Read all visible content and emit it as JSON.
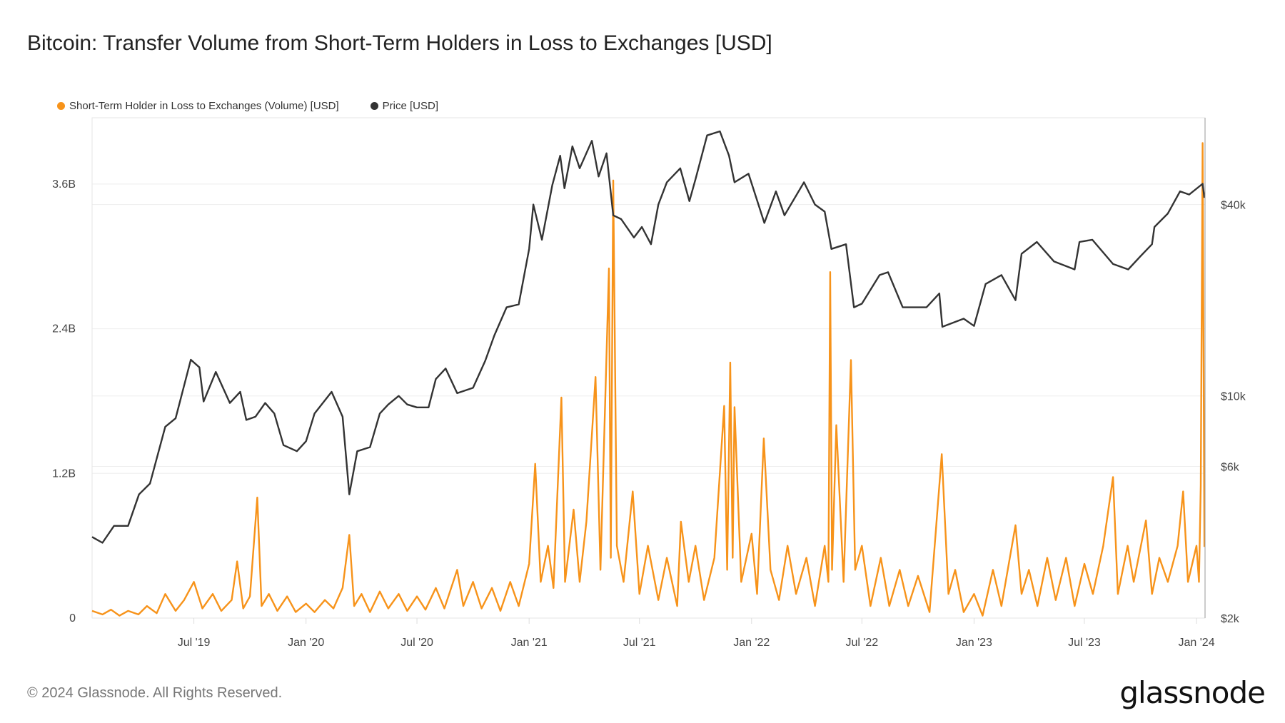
{
  "title": "Bitcoin: Transfer Volume from Short-Term Holders in Loss to Exchanges [USD]",
  "footer": "© 2024 Glassnode. All Rights Reserved.",
  "logo": "glassnode",
  "colors": {
    "volume": "#f7931a",
    "price": "#333333",
    "grid": "#eeeeee"
  },
  "chart_data": {
    "type": "line",
    "title": "Bitcoin: Transfer Volume from Short-Term Holders in Loss to Exchanges [USD]",
    "legend_placement": "top-left",
    "grid": true,
    "x_range": [
      "2019-01-15",
      "2024-01-15"
    ],
    "x_ticks": [
      {
        "date": "2019-07-01",
        "label": "Jul '19"
      },
      {
        "date": "2020-01-01",
        "label": "Jan '20"
      },
      {
        "date": "2020-07-01",
        "label": "Jul '20"
      },
      {
        "date": "2021-01-01",
        "label": "Jan '21"
      },
      {
        "date": "2021-07-01",
        "label": "Jul '21"
      },
      {
        "date": "2022-01-01",
        "label": "Jan '22"
      },
      {
        "date": "2022-07-01",
        "label": "Jul '22"
      },
      {
        "date": "2023-01-01",
        "label": "Jan '23"
      },
      {
        "date": "2023-07-01",
        "label": "Jul '23"
      },
      {
        "date": "2024-01-01",
        "label": "Jan '24"
      }
    ],
    "y_left": {
      "scale": "linear",
      "range": [
        0,
        4150000000
      ],
      "ticks": [
        {
          "value": 0,
          "label": "0"
        },
        {
          "value": 1200000000,
          "label": "1.2B"
        },
        {
          "value": 2400000000,
          "label": "2.4B"
        },
        {
          "value": 3600000000,
          "label": "3.6B"
        }
      ]
    },
    "y_right": {
      "scale": "log",
      "range": [
        2000,
        75000
      ],
      "ticks": [
        {
          "value": 2000,
          "label": "$2k"
        },
        {
          "value": 6000,
          "label": "$6k"
        },
        {
          "value": 10000,
          "label": "$10k"
        },
        {
          "value": 40000,
          "label": "$40k"
        }
      ]
    },
    "series": [
      {
        "name": "Short-Term Holder in Loss to Exchanges (Volume) [USD]",
        "axis": "left",
        "color": "#f7931a",
        "points": [
          [
            "2019-01-15",
            0.06
          ],
          [
            "2019-02-01",
            0.03
          ],
          [
            "2019-02-15",
            0.07
          ],
          [
            "2019-03-01",
            0.02
          ],
          [
            "2019-03-15",
            0.06
          ],
          [
            "2019-04-01",
            0.03
          ],
          [
            "2019-04-15",
            0.1
          ],
          [
            "2019-05-01",
            0.04
          ],
          [
            "2019-05-15",
            0.2
          ],
          [
            "2019-06-01",
            0.06
          ],
          [
            "2019-06-15",
            0.15
          ],
          [
            "2019-07-01",
            0.3
          ],
          [
            "2019-07-15",
            0.08
          ],
          [
            "2019-08-01",
            0.2
          ],
          [
            "2019-08-15",
            0.06
          ],
          [
            "2019-09-01",
            0.15
          ],
          [
            "2019-09-10",
            0.47
          ],
          [
            "2019-09-20",
            0.08
          ],
          [
            "2019-10-01",
            0.18
          ],
          [
            "2019-10-13",
            1.0
          ],
          [
            "2019-10-20",
            0.1
          ],
          [
            "2019-11-01",
            0.2
          ],
          [
            "2019-11-15",
            0.06
          ],
          [
            "2019-12-01",
            0.18
          ],
          [
            "2019-12-15",
            0.05
          ],
          [
            "2020-01-01",
            0.12
          ],
          [
            "2020-01-15",
            0.05
          ],
          [
            "2020-02-01",
            0.15
          ],
          [
            "2020-02-15",
            0.08
          ],
          [
            "2020-03-01",
            0.25
          ],
          [
            "2020-03-12",
            0.69
          ],
          [
            "2020-03-20",
            0.1
          ],
          [
            "2020-04-01",
            0.2
          ],
          [
            "2020-04-15",
            0.05
          ],
          [
            "2020-05-01",
            0.22
          ],
          [
            "2020-05-15",
            0.08
          ],
          [
            "2020-06-01",
            0.2
          ],
          [
            "2020-06-15",
            0.06
          ],
          [
            "2020-07-01",
            0.18
          ],
          [
            "2020-07-15",
            0.07
          ],
          [
            "2020-08-01",
            0.25
          ],
          [
            "2020-08-15",
            0.08
          ],
          [
            "2020-09-05",
            0.4
          ],
          [
            "2020-09-15",
            0.1
          ],
          [
            "2020-10-01",
            0.3
          ],
          [
            "2020-10-15",
            0.08
          ],
          [
            "2020-11-01",
            0.25
          ],
          [
            "2020-11-15",
            0.06
          ],
          [
            "2020-12-01",
            0.3
          ],
          [
            "2020-12-15",
            0.1
          ],
          [
            "2021-01-01",
            0.45
          ],
          [
            "2021-01-11",
            1.28
          ],
          [
            "2021-01-20",
            0.3
          ],
          [
            "2021-02-01",
            0.6
          ],
          [
            "2021-02-10",
            0.25
          ],
          [
            "2021-02-23",
            1.83
          ],
          [
            "2021-03-01",
            0.3
          ],
          [
            "2021-03-15",
            0.9
          ],
          [
            "2021-03-25",
            0.3
          ],
          [
            "2021-04-05",
            0.8
          ],
          [
            "2021-04-20",
            2.0
          ],
          [
            "2021-04-28",
            0.4
          ],
          [
            "2021-05-12",
            2.9
          ],
          [
            "2021-05-15",
            0.5
          ],
          [
            "2021-05-19",
            3.63
          ],
          [
            "2021-05-25",
            0.6
          ],
          [
            "2021-06-05",
            0.3
          ],
          [
            "2021-06-20",
            1.05
          ],
          [
            "2021-07-01",
            0.2
          ],
          [
            "2021-07-15",
            0.6
          ],
          [
            "2021-08-01",
            0.15
          ],
          [
            "2021-08-15",
            0.5
          ],
          [
            "2021-09-01",
            0.1
          ],
          [
            "2021-09-07",
            0.8
          ],
          [
            "2021-09-20",
            0.3
          ],
          [
            "2021-10-01",
            0.6
          ],
          [
            "2021-10-15",
            0.15
          ],
          [
            "2021-11-01",
            0.5
          ],
          [
            "2021-11-17",
            1.76
          ],
          [
            "2021-11-22",
            0.4
          ],
          [
            "2021-11-27",
            2.12
          ],
          [
            "2021-12-01",
            0.5
          ],
          [
            "2021-12-04",
            1.75
          ],
          [
            "2021-12-15",
            0.3
          ],
          [
            "2022-01-01",
            0.7
          ],
          [
            "2022-01-10",
            0.2
          ],
          [
            "2022-01-21",
            1.49
          ],
          [
            "2022-02-01",
            0.4
          ],
          [
            "2022-02-15",
            0.15
          ],
          [
            "2022-03-01",
            0.6
          ],
          [
            "2022-03-15",
            0.2
          ],
          [
            "2022-04-01",
            0.5
          ],
          [
            "2022-04-15",
            0.1
          ],
          [
            "2022-05-01",
            0.6
          ],
          [
            "2022-05-07",
            0.3
          ],
          [
            "2022-05-10",
            2.87
          ],
          [
            "2022-05-13",
            0.4
          ],
          [
            "2022-05-20",
            1.6
          ],
          [
            "2022-06-01",
            0.3
          ],
          [
            "2022-06-13",
            2.14
          ],
          [
            "2022-06-20",
            0.4
          ],
          [
            "2022-07-01",
            0.6
          ],
          [
            "2022-07-15",
            0.1
          ],
          [
            "2022-08-01",
            0.5
          ],
          [
            "2022-08-15",
            0.1
          ],
          [
            "2022-09-01",
            0.4
          ],
          [
            "2022-09-15",
            0.1
          ],
          [
            "2022-10-01",
            0.35
          ],
          [
            "2022-10-20",
            0.05
          ],
          [
            "2022-11-09",
            1.36
          ],
          [
            "2022-11-20",
            0.2
          ],
          [
            "2022-12-01",
            0.4
          ],
          [
            "2022-12-15",
            0.05
          ],
          [
            "2023-01-01",
            0.2
          ],
          [
            "2023-01-15",
            0.02
          ],
          [
            "2023-02-01",
            0.4
          ],
          [
            "2023-02-15",
            0.1
          ],
          [
            "2023-03-10",
            0.77
          ],
          [
            "2023-03-20",
            0.2
          ],
          [
            "2023-04-01",
            0.4
          ],
          [
            "2023-04-15",
            0.1
          ],
          [
            "2023-05-01",
            0.5
          ],
          [
            "2023-05-15",
            0.15
          ],
          [
            "2023-06-01",
            0.5
          ],
          [
            "2023-06-15",
            0.1
          ],
          [
            "2023-07-01",
            0.45
          ],
          [
            "2023-07-15",
            0.2
          ],
          [
            "2023-08-01",
            0.6
          ],
          [
            "2023-08-17",
            1.17
          ],
          [
            "2023-08-25",
            0.2
          ],
          [
            "2023-09-10",
            0.6
          ],
          [
            "2023-09-20",
            0.3
          ],
          [
            "2023-10-10",
            0.81
          ],
          [
            "2023-10-20",
            0.2
          ],
          [
            "2023-11-01",
            0.5
          ],
          [
            "2023-11-15",
            0.3
          ],
          [
            "2023-12-01",
            0.6
          ],
          [
            "2023-12-10",
            1.05
          ],
          [
            "2023-12-18",
            0.3
          ],
          [
            "2024-01-01",
            0.6
          ],
          [
            "2024-01-05",
            0.3
          ],
          [
            "2024-01-08",
            1.1
          ],
          [
            "2024-01-11",
            3.94
          ],
          [
            "2024-01-14",
            0.59
          ]
        ]
      },
      {
        "name": "Price [USD]",
        "axis": "right",
        "color": "#333333",
        "points": [
          [
            "2019-01-15",
            3600
          ],
          [
            "2019-02-01",
            3450
          ],
          [
            "2019-02-20",
            3900
          ],
          [
            "2019-03-15",
            3900
          ],
          [
            "2019-04-02",
            4900
          ],
          [
            "2019-04-20",
            5300
          ],
          [
            "2019-05-15",
            8000
          ],
          [
            "2019-06-01",
            8500
          ],
          [
            "2019-06-26",
            13000
          ],
          [
            "2019-07-10",
            12300
          ],
          [
            "2019-07-17",
            9600
          ],
          [
            "2019-08-06",
            11900
          ],
          [
            "2019-08-29",
            9500
          ],
          [
            "2019-09-15",
            10300
          ],
          [
            "2019-09-25",
            8400
          ],
          [
            "2019-10-10",
            8600
          ],
          [
            "2019-10-26",
            9500
          ],
          [
            "2019-11-10",
            8800
          ],
          [
            "2019-11-25",
            7000
          ],
          [
            "2019-12-17",
            6700
          ],
          [
            "2020-01-01",
            7200
          ],
          [
            "2020-01-15",
            8800
          ],
          [
            "2020-02-12",
            10300
          ],
          [
            "2020-03-01",
            8600
          ],
          [
            "2020-03-12",
            4900
          ],
          [
            "2020-03-25",
            6700
          ],
          [
            "2020-04-15",
            6900
          ],
          [
            "2020-05-01",
            8800
          ],
          [
            "2020-05-15",
            9400
          ],
          [
            "2020-06-01",
            10000
          ],
          [
            "2020-06-15",
            9400
          ],
          [
            "2020-07-01",
            9200
          ],
          [
            "2020-07-20",
            9200
          ],
          [
            "2020-08-01",
            11300
          ],
          [
            "2020-08-17",
            12200
          ],
          [
            "2020-09-05",
            10200
          ],
          [
            "2020-10-01",
            10600
          ],
          [
            "2020-10-21",
            12900
          ],
          [
            "2020-11-05",
            15500
          ],
          [
            "2020-11-25",
            19000
          ],
          [
            "2020-12-15",
            19400
          ],
          [
            "2021-01-01",
            29000
          ],
          [
            "2021-01-08",
            40000
          ],
          [
            "2021-01-22",
            31000
          ],
          [
            "2021-02-08",
            46000
          ],
          [
            "2021-02-21",
            57000
          ],
          [
            "2021-02-28",
            45000
          ],
          [
            "2021-03-13",
            61000
          ],
          [
            "2021-03-25",
            52000
          ],
          [
            "2021-04-14",
            63500
          ],
          [
            "2021-04-25",
            49000
          ],
          [
            "2021-05-08",
            58000
          ],
          [
            "2021-05-19",
            37000
          ],
          [
            "2021-06-01",
            36000
          ],
          [
            "2021-06-22",
            31500
          ],
          [
            "2021-07-05",
            34000
          ],
          [
            "2021-07-20",
            30000
          ],
          [
            "2021-08-01",
            40000
          ],
          [
            "2021-08-15",
            47000
          ],
          [
            "2021-09-06",
            52000
          ],
          [
            "2021-09-21",
            41000
          ],
          [
            "2021-10-01",
            48000
          ],
          [
            "2021-10-20",
            66000
          ],
          [
            "2021-11-10",
            68000
          ],
          [
            "2021-11-25",
            57000
          ],
          [
            "2021-12-04",
            47000
          ],
          [
            "2021-12-27",
            50000
          ],
          [
            "2022-01-22",
            35000
          ],
          [
            "2022-02-10",
            44000
          ],
          [
            "2022-02-24",
            37000
          ],
          [
            "2022-03-28",
            47000
          ],
          [
            "2022-04-15",
            40000
          ],
          [
            "2022-05-01",
            38000
          ],
          [
            "2022-05-12",
            29000
          ],
          [
            "2022-06-05",
            30000
          ],
          [
            "2022-06-18",
            19000
          ],
          [
            "2022-07-01",
            19500
          ],
          [
            "2022-07-30",
            24000
          ],
          [
            "2022-08-13",
            24500
          ],
          [
            "2022-09-06",
            19000
          ],
          [
            "2022-09-20",
            19000
          ],
          [
            "2022-10-15",
            19000
          ],
          [
            "2022-11-05",
            21000
          ],
          [
            "2022-11-10",
            16500
          ],
          [
            "2022-12-15",
            17500
          ],
          [
            "2023-01-01",
            16600
          ],
          [
            "2023-01-20",
            22500
          ],
          [
            "2023-02-15",
            24000
          ],
          [
            "2023-03-10",
            20000
          ],
          [
            "2023-03-20",
            28000
          ],
          [
            "2023-04-14",
            30500
          ],
          [
            "2023-05-12",
            26500
          ],
          [
            "2023-06-15",
            25000
          ],
          [
            "2023-06-23",
            30500
          ],
          [
            "2023-07-14",
            31000
          ],
          [
            "2023-08-17",
            26000
          ],
          [
            "2023-09-11",
            25000
          ],
          [
            "2023-10-01",
            27500
          ],
          [
            "2023-10-20",
            30000
          ],
          [
            "2023-10-24",
            34000
          ],
          [
            "2023-11-15",
            37500
          ],
          [
            "2023-12-05",
            44000
          ],
          [
            "2023-12-20",
            43000
          ],
          [
            "2024-01-11",
            46500
          ],
          [
            "2024-01-14",
            42000
          ]
        ]
      }
    ]
  }
}
